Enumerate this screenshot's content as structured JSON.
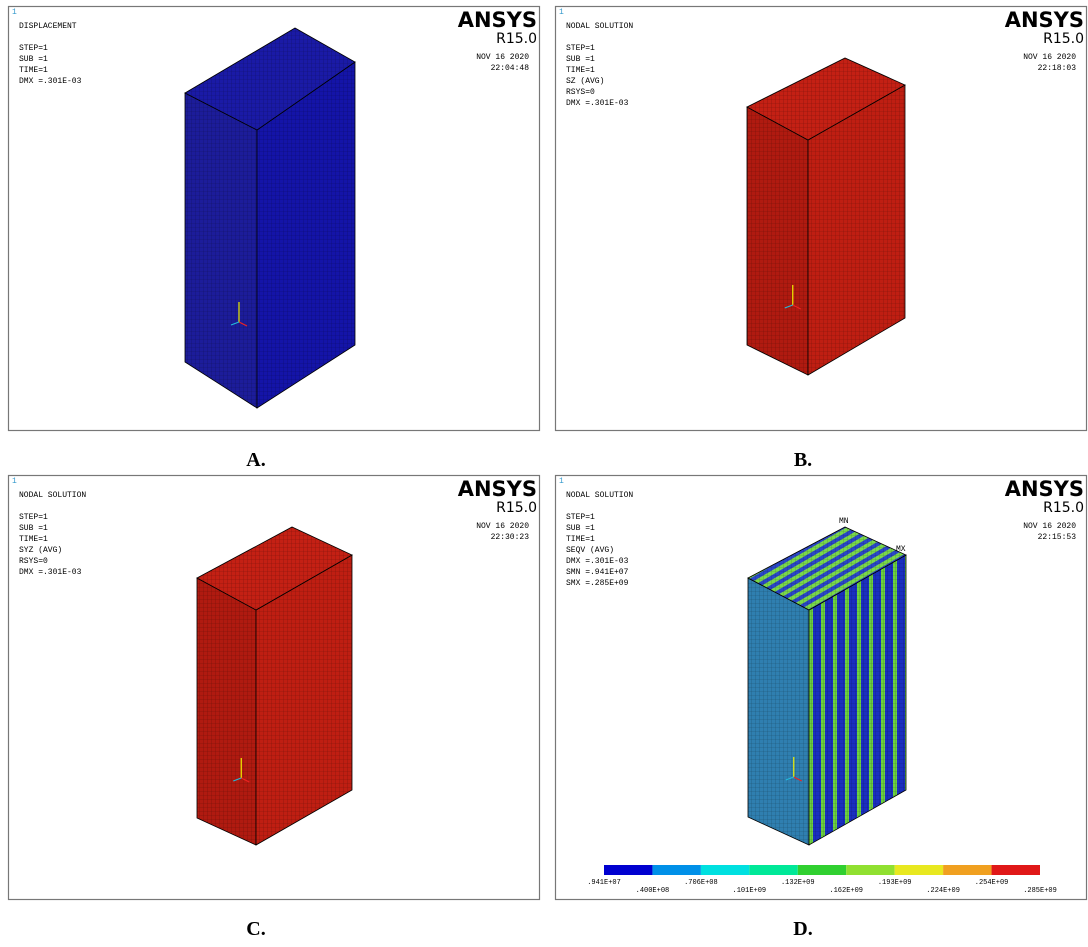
{
  "panels": [
    {
      "caption": "A.",
      "panel_number": "1",
      "logo": "ANSYS",
      "version": "R15.0",
      "info_lines": [
        "DISPLACEMENT",
        "",
        "STEP=1",
        "SUB =1",
        "TIME=1",
        "DMX =.301E-03"
      ],
      "date": "NOV 16 2020",
      "time": "22:04:48"
    },
    {
      "caption": "B.",
      "panel_number": "1",
      "logo": "ANSYS",
      "version": "R15.0",
      "info_lines": [
        "NODAL SOLUTION",
        "",
        "STEP=1",
        "SUB =1",
        "TIME=1",
        "SZ       (AVG)",
        "RSYS=0",
        "DMX =.301E-03"
      ],
      "date": "NOV 16 2020",
      "time": "22:18:03"
    },
    {
      "caption": "C.",
      "panel_number": "1",
      "logo": "ANSYS",
      "version": "R15.0",
      "info_lines": [
        "NODAL SOLUTION",
        "",
        "STEP=1",
        "SUB =1",
        "TIME=1",
        "SYZ      (AVG)",
        "RSYS=0",
        "DMX =.301E-03"
      ],
      "date": "NOV 16 2020",
      "time": "22:30:23"
    },
    {
      "caption": "D.",
      "panel_number": "1",
      "logo": "ANSYS",
      "version": "R15.0",
      "info_lines": [
        "NODAL SOLUTION",
        "",
        "STEP=1",
        "SUB =1",
        "TIME=1",
        "SEQV     (AVG)",
        "DMX =.301E-03",
        "SMN =.941E+07",
        "SMX =.285E+09"
      ],
      "date": "NOV 16 2020",
      "time": "22:15:53",
      "markers": [
        "MN",
        "MX"
      ],
      "legend": [
        ".941E+07",
        ".400E+08",
        ".706E+08",
        ".101E+09",
        ".132E+09",
        ".162E+09",
        ".193E+09",
        ".224E+09",
        ".254E+09",
        ".285E+09"
      ]
    }
  ]
}
